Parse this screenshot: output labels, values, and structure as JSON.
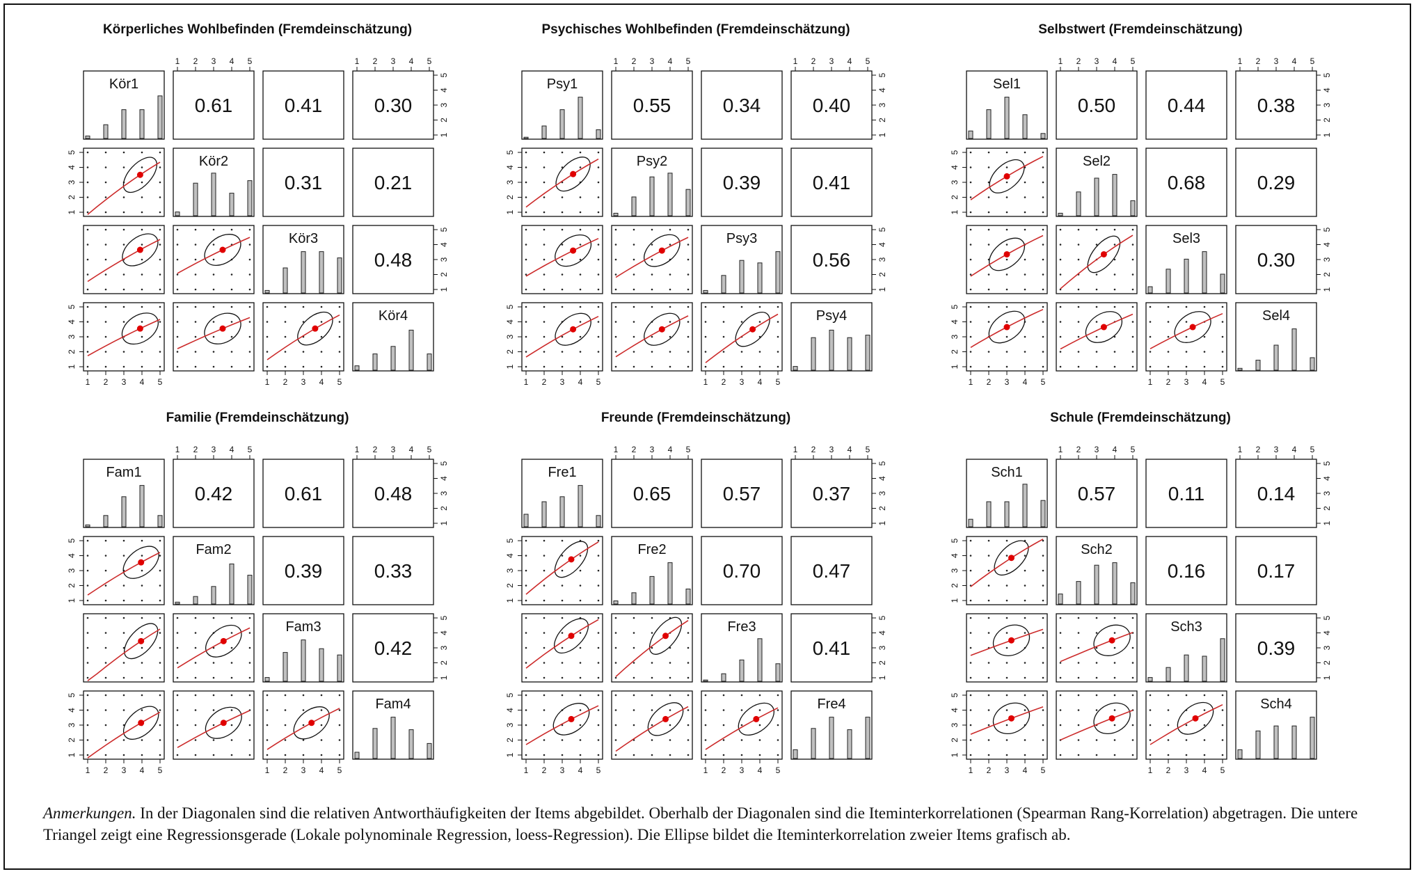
{
  "colors": {
    "frame": "#111111",
    "bar_fill": "#c0c0c0",
    "loess_line": "#cc2a2a",
    "mean_point": "#e00000",
    "ellipse": "#111111"
  },
  "chart_data": [
    {
      "type": "scatterplot_matrix",
      "title": "Körperliches Wohlbefinden (Fremdeinschätzung)",
      "items": [
        "Kör1",
        "Kör2",
        "Kör3",
        "Kör4"
      ],
      "axis_range": [
        1,
        5
      ],
      "axis_ticks": [
        1,
        2,
        3,
        4,
        5
      ],
      "correlations": [
        [
          "",
          "0.61",
          "0.41",
          "0.30"
        ],
        [
          "",
          "",
          "0.31",
          "0.21"
        ],
        [
          "",
          "",
          "",
          "0.48"
        ],
        [
          "",
          "",
          "",
          ""
        ]
      ],
      "diag_histograms": [
        [
          0.04,
          0.22,
          0.46,
          0.46,
          0.68
        ],
        [
          0.06,
          0.52,
          0.68,
          0.36,
          0.56
        ],
        [
          0.04,
          0.4,
          0.66,
          0.66,
          0.56
        ],
        [
          0.07,
          0.26,
          0.38,
          0.64,
          0.26
        ]
      ],
      "means": [
        3.9,
        3.5,
        3.65,
        3.55
      ]
    },
    {
      "type": "scatterplot_matrix",
      "title": "Psychisches Wohlbefinden (Fremdeinschätzung)",
      "items": [
        "Psy1",
        "Psy2",
        "Psy3",
        "Psy4"
      ],
      "axis_range": [
        1,
        5
      ],
      "axis_ticks": [
        1,
        2,
        3,
        4,
        5
      ],
      "correlations": [
        [
          "",
          "0.55",
          "0.34",
          "0.40"
        ],
        [
          "",
          "",
          "0.39",
          "0.41"
        ],
        [
          "",
          "",
          "",
          "0.56"
        ],
        [
          "",
          "",
          "",
          ""
        ]
      ],
      "diag_histograms": [
        [
          0.02,
          0.2,
          0.46,
          0.66,
          0.14
        ],
        [
          0.04,
          0.3,
          0.62,
          0.68,
          0.42
        ],
        [
          0.04,
          0.28,
          0.52,
          0.48,
          0.66
        ],
        [
          0.06,
          0.52,
          0.64,
          0.52,
          0.56
        ]
      ],
      "means": [
        3.6,
        3.55,
        3.6,
        3.5
      ]
    },
    {
      "type": "scatterplot_matrix",
      "title": "Selbstwert (Fremdeinschätzung)",
      "items": [
        "Sel1",
        "Sel2",
        "Sel3",
        "Sel4"
      ],
      "axis_range": [
        1,
        5
      ],
      "axis_ticks": [
        1,
        2,
        3,
        4,
        5
      ],
      "correlations": [
        [
          "",
          "0.50",
          "0.44",
          "0.38"
        ],
        [
          "",
          "",
          "0.68",
          "0.29"
        ],
        [
          "",
          "",
          "",
          "0.30"
        ],
        [
          "",
          "",
          "",
          ""
        ]
      ],
      "diag_histograms": [
        [
          0.12,
          0.46,
          0.66,
          0.38,
          0.08
        ],
        [
          0.04,
          0.38,
          0.6,
          0.66,
          0.24
        ],
        [
          0.1,
          0.38,
          0.54,
          0.66,
          0.3
        ],
        [
          0.03,
          0.16,
          0.4,
          0.66,
          0.2
        ]
      ],
      "means": [
        3.0,
        3.4,
        3.35,
        3.65
      ]
    },
    {
      "type": "scatterplot_matrix",
      "title": "Familie (Fremdeinschätzung)",
      "items": [
        "Fam1",
        "Fam2",
        "Fam3",
        "Fam4"
      ],
      "axis_range": [
        1,
        5
      ],
      "axis_ticks": [
        1,
        2,
        3,
        4,
        5
      ],
      "correlations": [
        [
          "",
          "0.42",
          "0.61",
          "0.48"
        ],
        [
          "",
          "",
          "0.39",
          "0.33"
        ],
        [
          "",
          "",
          "",
          "0.42"
        ],
        [
          "",
          "",
          "",
          ""
        ]
      ],
      "diag_histograms": [
        [
          0.03,
          0.18,
          0.48,
          0.66,
          0.18
        ],
        [
          0.03,
          0.12,
          0.28,
          0.64,
          0.46
        ],
        [
          0.06,
          0.46,
          0.66,
          0.52,
          0.42
        ],
        [
          0.1,
          0.48,
          0.66,
          0.46,
          0.24
        ]
      ],
      "means": [
        3.95,
        3.55,
        3.45,
        3.15
      ]
    },
    {
      "type": "scatterplot_matrix",
      "title": "Freunde (Fremdeinschätzung)",
      "items": [
        "Fre1",
        "Fre2",
        "Fre3",
        "Fre4"
      ],
      "axis_range": [
        1,
        5
      ],
      "axis_ticks": [
        1,
        2,
        3,
        4,
        5
      ],
      "correlations": [
        [
          "",
          "0.65",
          "0.57",
          "0.37"
        ],
        [
          "",
          "",
          "0.70",
          "0.47"
        ],
        [
          "",
          "",
          "",
          "0.41"
        ],
        [
          "",
          "",
          "",
          ""
        ]
      ],
      "diag_histograms": [
        [
          0.2,
          0.4,
          0.48,
          0.66,
          0.18
        ],
        [
          0.05,
          0.18,
          0.44,
          0.66,
          0.24
        ],
        [
          0.02,
          0.12,
          0.34,
          0.68,
          0.28
        ],
        [
          0.14,
          0.48,
          0.66,
          0.46,
          0.66
        ]
      ],
      "means": [
        3.5,
        3.75,
        3.8,
        3.4
      ]
    },
    {
      "type": "scatterplot_matrix",
      "title": "Schule (Fremdeinschätzung)",
      "items": [
        "Sch1",
        "Sch2",
        "Sch3",
        "Sch4"
      ],
      "axis_range": [
        1,
        5
      ],
      "axis_ticks": [
        1,
        2,
        3,
        4,
        5
      ],
      "correlations": [
        [
          "",
          "0.57",
          "0.11",
          "0.14"
        ],
        [
          "",
          "",
          "0.16",
          "0.17"
        ],
        [
          "",
          "",
          "",
          "0.39"
        ],
        [
          "",
          "",
          "",
          ""
        ]
      ],
      "diag_histograms": [
        [
          0.12,
          0.4,
          0.4,
          0.68,
          0.42
        ],
        [
          0.16,
          0.36,
          0.62,
          0.66,
          0.34
        ],
        [
          0.06,
          0.22,
          0.42,
          0.4,
          0.68
        ],
        [
          0.14,
          0.44,
          0.52,
          0.52,
          0.66
        ]
      ],
      "means": [
        3.25,
        3.85,
        3.5,
        3.45
      ]
    }
  ],
  "caption": {
    "label": "Anmerkungen.",
    "text": " In der Diagonalen sind die relativen Antworthäufigkeiten der Items abgebildet. Oberhalb der Diagonalen sind die Iteminterkorrelationen (Spearman Rang-Korrelation) abgetragen. Die untere Triangel zeigt eine Regressionsgerade (Lokale polynominale Regression, loess-Regression). Die Ellipse bildet die Iteminterkorrelation zweier Items grafisch ab."
  }
}
